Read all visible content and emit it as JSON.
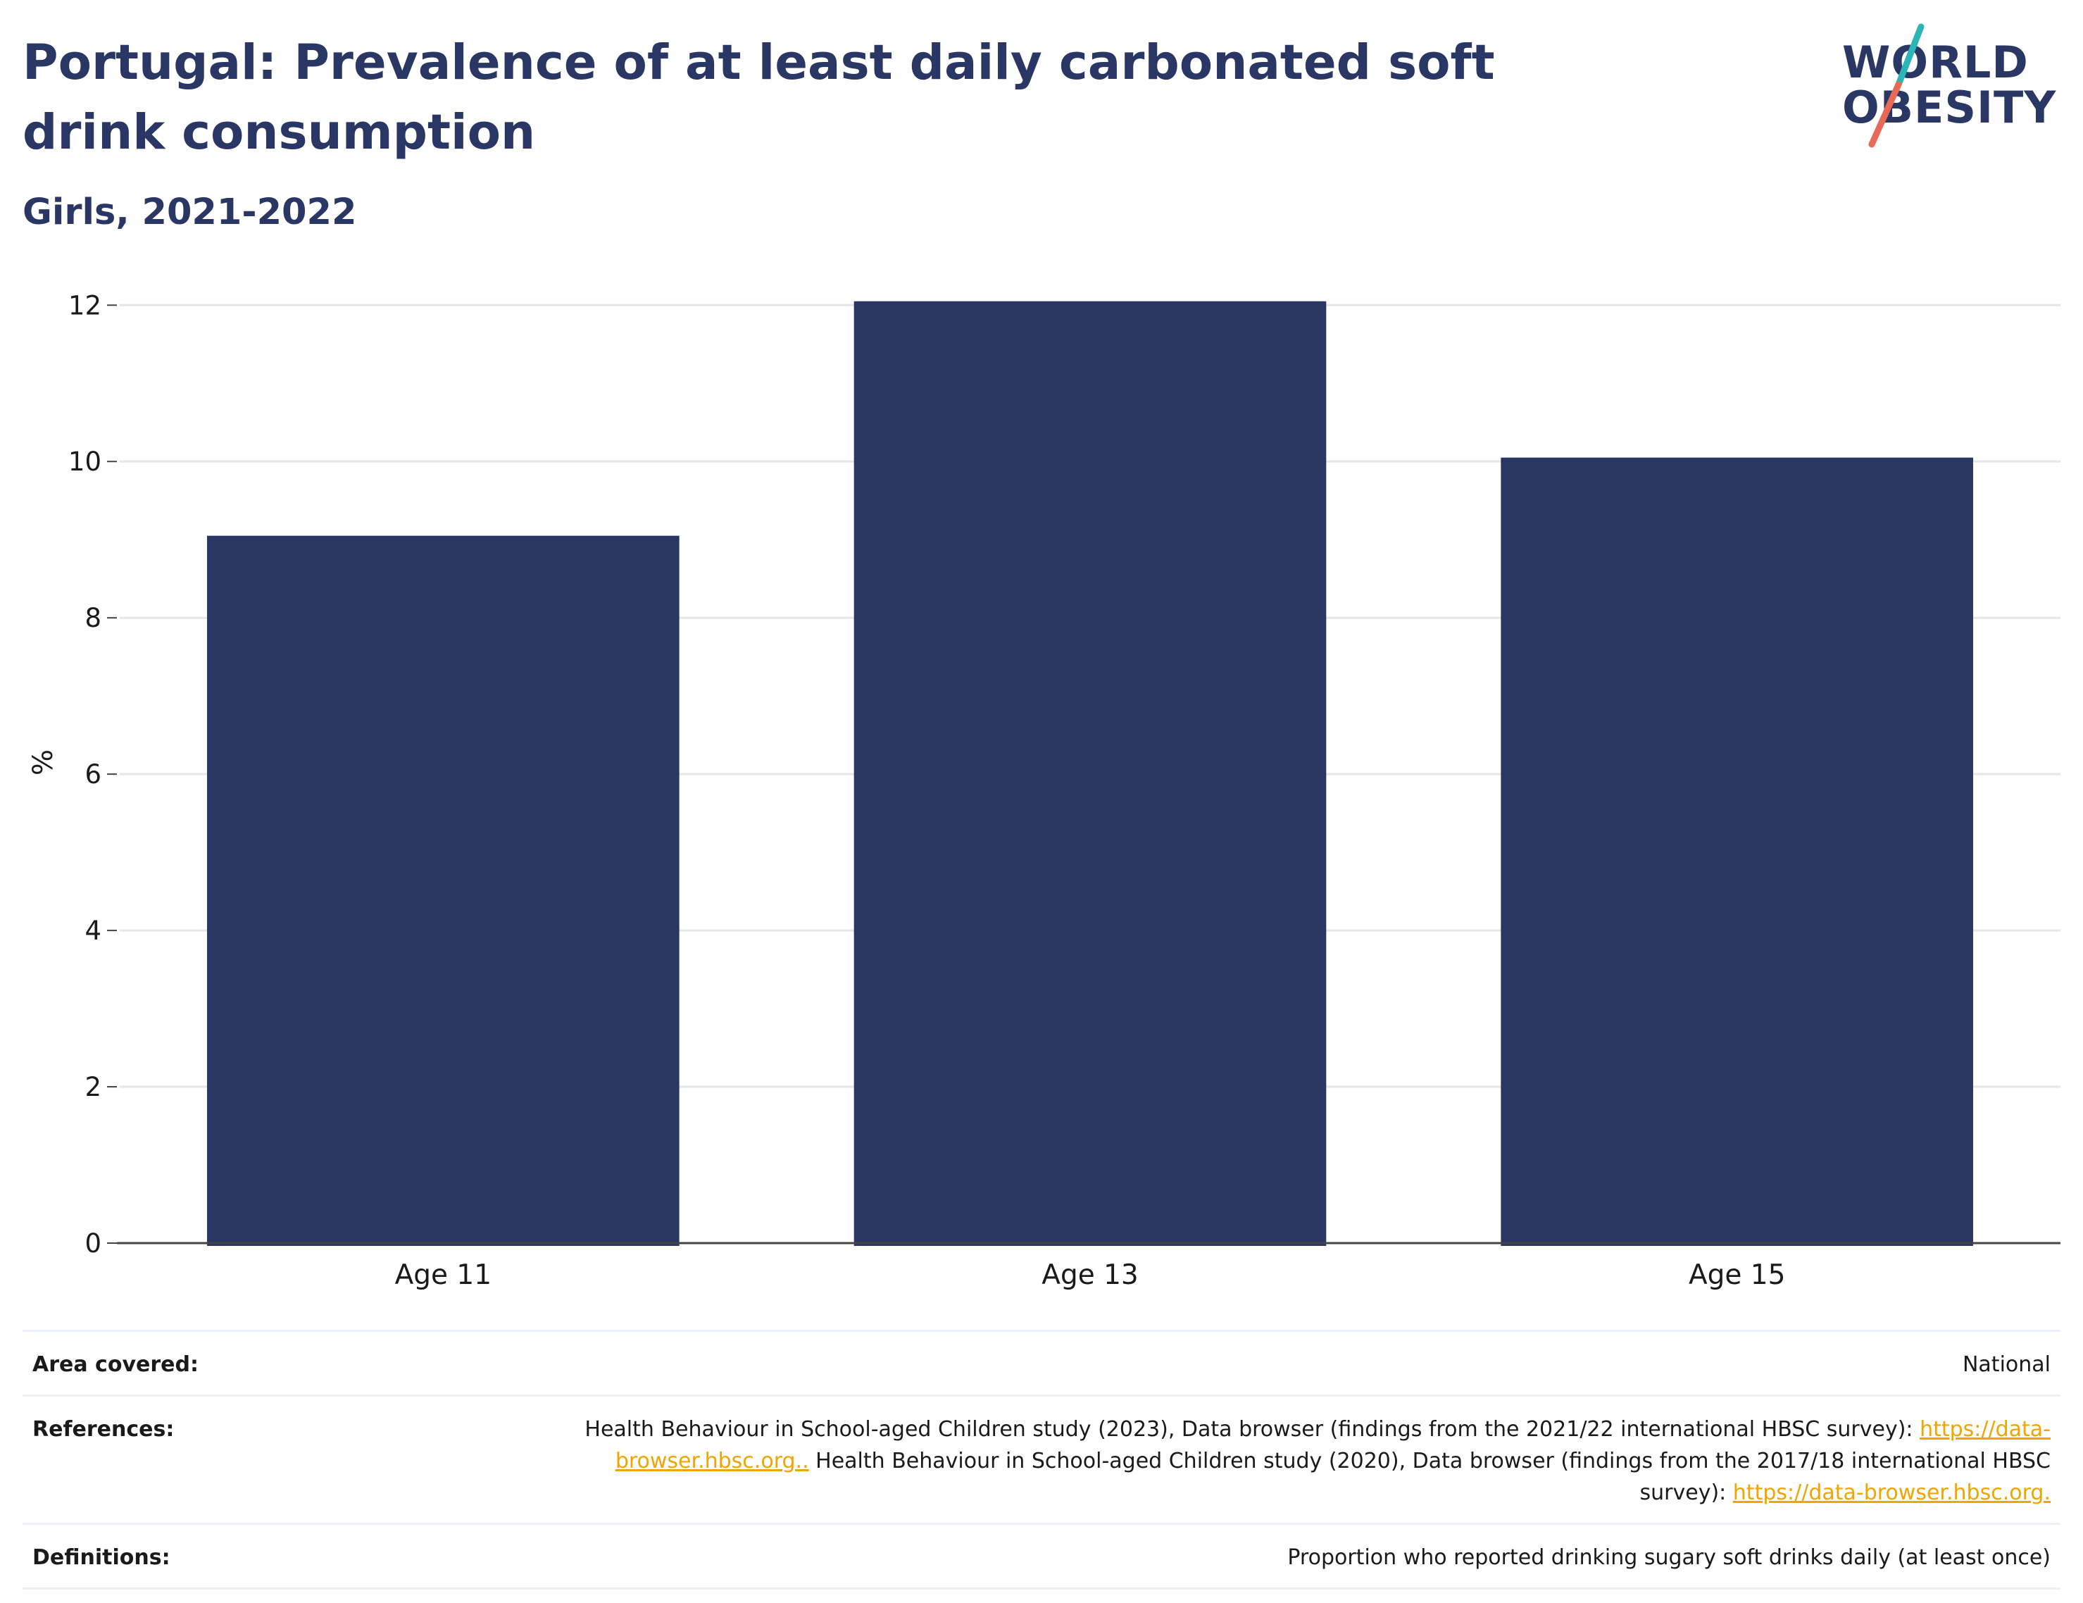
{
  "header": {
    "title": "Portugal: Prevalence of at least daily carbonated soft drink consumption",
    "subtitle": "Girls, 2021-2022"
  },
  "logo": {
    "line1": "WORLD",
    "line2": "OBESITY",
    "colors": {
      "text": "#2a3663",
      "slash_top": "#2bb5b5",
      "slash_bottom": "#e86a56"
    }
  },
  "chart_data": {
    "type": "bar",
    "categories": [
      "Age 11",
      "Age 13",
      "Age 15"
    ],
    "values": [
      9.05,
      12.05,
      10.05
    ],
    "ylabel": "%",
    "xlabel": "",
    "ylim": [
      0,
      12.3
    ],
    "yticks": [
      0,
      2,
      4,
      6,
      8,
      10,
      12
    ],
    "grid": true,
    "bar_color": "#2a3663"
  },
  "metadata": {
    "area_key": "Area covered:",
    "area_value": "National",
    "references_key": "References:",
    "references": {
      "part1": "Health Behaviour in School-aged Children study (2023), Data browser (findings from the 2021/22 international HBSC survey): ",
      "link1": "https://data-browser.hbsc.org..",
      "part2": " Health Behaviour in School-aged Children study (2020), Data browser (findings from the 2017/18 international HBSC survey): ",
      "link2": "https://data-browser.hbsc.org."
    },
    "definitions_key": "Definitions:",
    "definitions_value": "Proportion who reported drinking sugary soft drinks daily (at least once)"
  }
}
